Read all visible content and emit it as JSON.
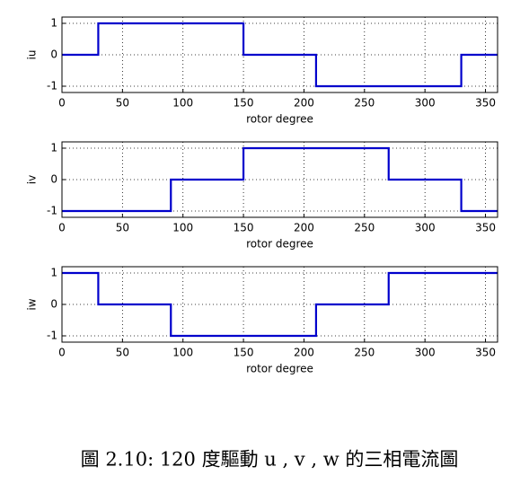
{
  "chart_data": [
    {
      "type": "line",
      "x_label": "rotor degree",
      "y_label": "iu",
      "x": [
        0,
        30,
        30,
        150,
        150,
        210,
        210,
        330,
        330,
        360
      ],
      "series": [
        {
          "name": "iu",
          "color": "#0000cc",
          "values": [
            0,
            0,
            1,
            1,
            0,
            0,
            -1,
            -1,
            0,
            0
          ]
        }
      ],
      "xlim": [
        0,
        360
      ],
      "xticks": [
        0,
        50,
        100,
        150,
        200,
        250,
        300,
        350
      ],
      "ylim": [
        -1.2,
        1.2
      ],
      "yticks": [
        -1,
        0,
        1
      ],
      "grid": true
    },
    {
      "type": "line",
      "x_label": "rotor degree",
      "y_label": "iv",
      "x": [
        0,
        90,
        90,
        150,
        150,
        270,
        270,
        330,
        330,
        360
      ],
      "series": [
        {
          "name": "iv",
          "color": "#0000cc",
          "values": [
            -1,
            -1,
            0,
            0,
            1,
            1,
            0,
            0,
            -1,
            -1
          ]
        }
      ],
      "xlim": [
        0,
        360
      ],
      "xticks": [
        0,
        50,
        100,
        150,
        200,
        250,
        300,
        350
      ],
      "ylim": [
        -1.2,
        1.2
      ],
      "yticks": [
        -1,
        0,
        1
      ],
      "grid": true
    },
    {
      "type": "line",
      "x_label": "rotor degree",
      "y_label": "iw",
      "x": [
        0,
        30,
        30,
        90,
        90,
        210,
        210,
        270,
        270,
        360
      ],
      "series": [
        {
          "name": "iw",
          "color": "#0000cc",
          "values": [
            1,
            1,
            0,
            0,
            -1,
            -1,
            0,
            0,
            1,
            1
          ]
        }
      ],
      "xlim": [
        0,
        360
      ],
      "xticks": [
        0,
        50,
        100,
        150,
        200,
        250,
        300,
        350
      ],
      "ylim": [
        -1.2,
        1.2
      ],
      "yticks": [
        -1,
        0,
        1
      ],
      "grid": true
    }
  ],
  "caption": "圖 2.10: 120 度驅動 u , v , w 的三相電流圖"
}
